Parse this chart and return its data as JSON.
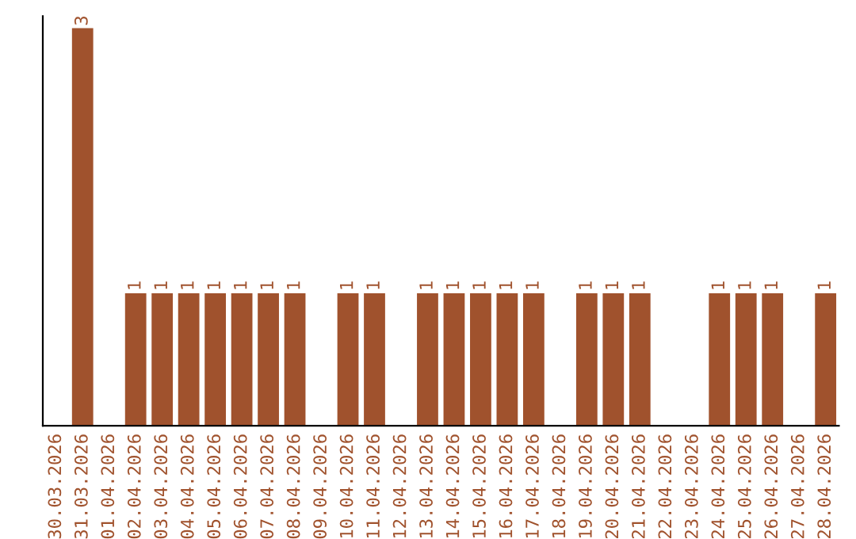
{
  "chart_data": {
    "type": "bar",
    "categories": [
      "30.03.2026",
      "31.03.2026",
      "01.04.2026",
      "02.04.2026",
      "03.04.2026",
      "04.04.2026",
      "05.04.2026",
      "06.04.2026",
      "07.04.2026",
      "08.04.2026",
      "09.04.2026",
      "10.04.2026",
      "11.04.2026",
      "12.04.2026",
      "13.04.2026",
      "14.04.2026",
      "15.04.2026",
      "16.04.2026",
      "17.04.2026",
      "18.04.2026",
      "19.04.2026",
      "20.04.2026",
      "21.04.2026",
      "22.04.2026",
      "23.04.2026",
      "24.04.2026",
      "25.04.2026",
      "26.04.2026",
      "27.04.2026",
      "28.04.2026"
    ],
    "values": [
      0,
      3,
      0,
      1,
      1,
      1,
      1,
      1,
      1,
      1,
      0,
      1,
      1,
      0,
      1,
      1,
      1,
      1,
      1,
      0,
      1,
      1,
      1,
      0,
      0,
      1,
      1,
      1,
      0,
      1
    ],
    "value_labels": [
      null,
      "3",
      null,
      "1",
      "1",
      "1",
      "1",
      "1",
      "1",
      "1",
      null,
      "1",
      "1",
      null,
      "1",
      "1",
      "1",
      "1",
      "1",
      null,
      "1",
      "1",
      "1",
      null,
      null,
      "1",
      "1",
      "1",
      null,
      "1"
    ],
    "color": "#a0522d",
    "tick_labels": "x",
    "grid": false,
    "legend": false
  }
}
